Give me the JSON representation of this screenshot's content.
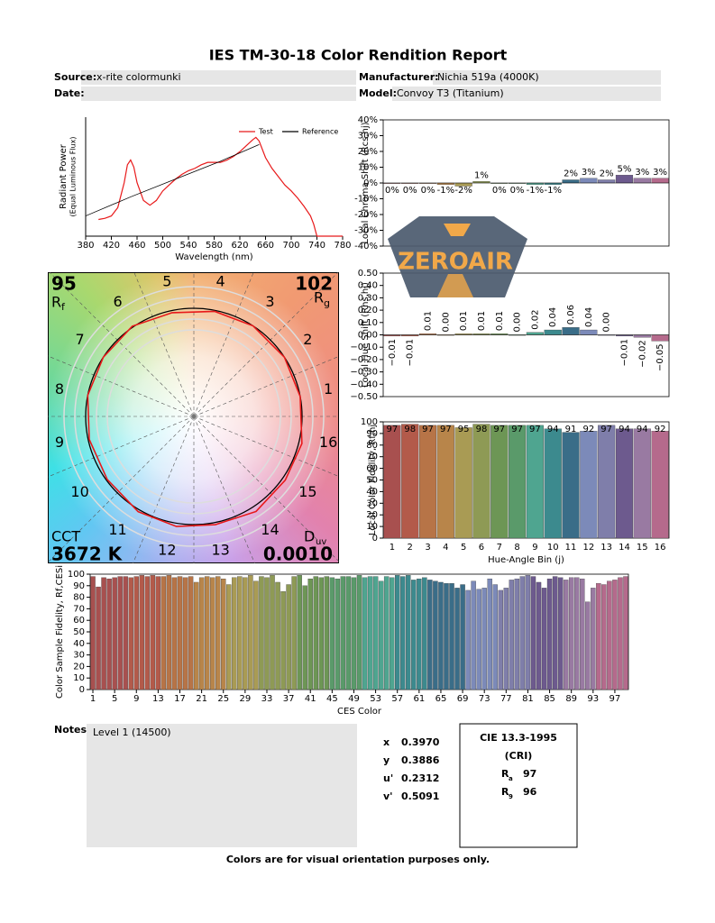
{
  "header": {
    "title": "IES TM-30-18 Color Rendition Report",
    "source_label": "Source:",
    "source": "x-rite colormunki",
    "date_label": "Date:",
    "manufacturer_label": "Manufacturer:",
    "manufacturer": "Nichia 519a (4000K)",
    "model_label": "Model:",
    "model": "Convoy T3 (Titanium)"
  },
  "chart_data": [
    {
      "type": "line",
      "xlabel": "Wavelength (nm)",
      "ylabel": "Radiant Power",
      "ylabel2": "(Equal Luminous Flux)",
      "xlim": [
        380,
        780
      ],
      "xticks": [
        380,
        420,
        460,
        500,
        540,
        580,
        620,
        660,
        700,
        740,
        780
      ],
      "ylim": [
        0,
        1
      ],
      "series": [
        {
          "name": "Test",
          "color": "#e8191a",
          "x": [
            400,
            410,
            420,
            430,
            440,
            445,
            450,
            455,
            460,
            470,
            480,
            490,
            500,
            510,
            520,
            530,
            540,
            550,
            560,
            570,
            580,
            590,
            600,
            610,
            620,
            630,
            640,
            645,
            650,
            660,
            670,
            680,
            690,
            700,
            710,
            720,
            730,
            735,
            740,
            750,
            760,
            780
          ],
          "values": [
            0.14,
            0.15,
            0.17,
            0.24,
            0.45,
            0.6,
            0.64,
            0.58,
            0.45,
            0.3,
            0.26,
            0.3,
            0.38,
            0.43,
            0.48,
            0.52,
            0.55,
            0.57,
            0.6,
            0.62,
            0.62,
            0.62,
            0.64,
            0.67,
            0.71,
            0.76,
            0.81,
            0.83,
            0.8,
            0.66,
            0.57,
            0.5,
            0.43,
            0.38,
            0.32,
            0.25,
            0.17,
            0.1,
            0,
            0,
            0,
            0
          ]
        },
        {
          "name": "Reference",
          "color": "#000000",
          "x": [
            380,
            450,
            520,
            590,
            650
          ],
          "values": [
            0.17,
            0.33,
            0.48,
            0.63,
            0.77
          ]
        }
      ]
    },
    {
      "type": "bar",
      "ylabel": "Local Chroma Shift (Rcs,hj)",
      "ylim": [
        -40,
        40
      ],
      "yticks": [
        {
          "value": -40,
          "label": "-40%"
        },
        {
          "value": -30,
          "label": "-30%"
        },
        {
          "value": -20,
          "label": "-20%"
        },
        {
          "value": -10,
          "label": "-10%"
        },
        {
          "value": 0,
          "label": "0%"
        },
        {
          "value": 10,
          "label": "10%"
        },
        {
          "value": 20,
          "label": "20%"
        },
        {
          "value": 30,
          "label": "30%"
        },
        {
          "value": 40,
          "label": "40%"
        }
      ],
      "values": [
        0,
        0,
        0,
        -1,
        -2,
        1,
        0,
        0,
        -1,
        -1,
        2,
        3,
        2,
        5,
        3,
        3
      ],
      "value_labels": [
        "0%",
        "0%",
        "0%",
        "-1%",
        "-2%",
        "1%",
        "0%",
        "0%",
        "-1%",
        "-1%",
        "2%",
        "3%",
        "2%",
        "5%",
        "3%",
        "3%"
      ],
      "colors": [
        "#a8504f",
        "#b35a4a",
        "#b77447",
        "#b8854a",
        "#a99b54",
        "#8e9a55",
        "#6d9655",
        "#5a9a6a",
        "#4fa590",
        "#3c8a8e",
        "#3a6d88",
        "#7c8ab9",
        "#7f7eaa",
        "#6d5a8e",
        "#997aa2",
        "#b56a8c"
      ]
    },
    {
      "type": "bar",
      "ylabel": "Local Hue Shift (Rhs,hj)",
      "ylim": [
        -0.5,
        0.5
      ],
      "yticks": [
        {
          "value": -0.5,
          "label": "−0.50"
        },
        {
          "value": -0.4,
          "label": "−0.40"
        },
        {
          "value": -0.3,
          "label": "−0.30"
        },
        {
          "value": -0.2,
          "label": "−0.20"
        },
        {
          "value": -0.1,
          "label": "−0.10"
        },
        {
          "value": 0,
          "label": "0.00"
        },
        {
          "value": 0.1,
          "label": "0.10"
        },
        {
          "value": 0.2,
          "label": "0.20"
        },
        {
          "value": 0.3,
          "label": "0.30"
        },
        {
          "value": 0.4,
          "label": "0.40"
        },
        {
          "value": 0.5,
          "label": "0.50"
        }
      ],
      "values": [
        -0.01,
        -0.01,
        0.01,
        0,
        0.01,
        0.01,
        0.01,
        0,
        0.02,
        0.04,
        0.06,
        0.04,
        0,
        -0.01,
        -0.02,
        -0.05
      ],
      "value_labels": [
        "−0.01",
        "−0.01",
        "0.01",
        "0.00",
        "0.01",
        "0.01",
        "0.01",
        "0.00",
        "0.02",
        "0.04",
        "0.06",
        "0.04",
        "0.00",
        "−0.01",
        "−0.02",
        "−0.05"
      ],
      "colors": [
        "#a8504f",
        "#b35a4a",
        "#b77447",
        "#b8854a",
        "#a99b54",
        "#8e9a55",
        "#6d9655",
        "#5a9a6a",
        "#4fa590",
        "#3c8a8e",
        "#3a6d88",
        "#7c8ab9",
        "#7f7eaa",
        "#6d5a8e",
        "#997aa2",
        "#b56a8c"
      ]
    },
    {
      "type": "bar",
      "ylabel": "Local Color Fidelity, Rf,hj",
      "xlabel": "Hue-Angle Bin (j)",
      "ylim": [
        0,
        100
      ],
      "yticks": [
        0,
        10,
        20,
        30,
        40,
        50,
        60,
        70,
        80,
        90,
        100
      ],
      "categories": [
        1,
        2,
        3,
        4,
        5,
        6,
        7,
        8,
        9,
        10,
        11,
        12,
        13,
        14,
        15,
        16
      ],
      "values": [
        97,
        98,
        97,
        97,
        95,
        98,
        97,
        97,
        97,
        94,
        91,
        92,
        97,
        94,
        94,
        92
      ],
      "colors": [
        "#a8504f",
        "#b35a4a",
        "#b77447",
        "#b8854a",
        "#a99b54",
        "#8e9a55",
        "#6d9655",
        "#5a9a6a",
        "#4fa590",
        "#3c8a8e",
        "#3a6d88",
        "#7c8ab9",
        "#7f7eaa",
        "#6d5a8e",
        "#997aa2",
        "#b56a8c"
      ]
    },
    {
      "type": "bar",
      "ylabel": "Color Sample Fidelity, Rf,CESi",
      "xlabel": "CES Color",
      "ylim": [
        0,
        100
      ],
      "yticks": [
        0,
        10,
        20,
        30,
        40,
        50,
        60,
        70,
        80,
        90,
        100
      ],
      "xlim": [
        0.5,
        99.5
      ],
      "xticks": [
        1,
        5,
        9,
        13,
        17,
        21,
        25,
        29,
        33,
        37,
        41,
        45,
        49,
        53,
        57,
        61,
        65,
        69,
        73,
        77,
        81,
        85,
        89,
        93,
        97
      ],
      "x": [
        1,
        2,
        3,
        4,
        5,
        6,
        7,
        8,
        9,
        10,
        11,
        12,
        13,
        14,
        15,
        16,
        17,
        18,
        19,
        20,
        21,
        22,
        23,
        24,
        25,
        26,
        27,
        28,
        29,
        30,
        31,
        32,
        33,
        34,
        35,
        36,
        37,
        38,
        39,
        40,
        41,
        42,
        43,
        44,
        45,
        46,
        47,
        48,
        49,
        50,
        51,
        52,
        53,
        54,
        55,
        56,
        57,
        58,
        59,
        60,
        61,
        62,
        63,
        64,
        65,
        66,
        67,
        68,
        69,
        70,
        71,
        72,
        73,
        74,
        75,
        76,
        77,
        78,
        79,
        80,
        81,
        82,
        83,
        84,
        85,
        86,
        87,
        88,
        89,
        90,
        91,
        92,
        93,
        94,
        95,
        96,
        97,
        98,
        99
      ],
      "values": [
        98,
        89,
        97,
        96,
        97,
        98,
        98,
        97,
        98,
        99,
        98,
        99,
        98,
        98,
        99,
        97,
        98,
        97,
        98,
        93,
        97,
        98,
        97,
        98,
        96,
        91,
        97,
        98,
        97,
        99,
        94,
        98,
        97,
        99,
        93,
        85,
        91,
        98,
        99,
        90,
        96,
        98,
        97,
        98,
        97,
        96,
        98,
        98,
        97,
        99,
        97,
        98,
        98,
        94,
        98,
        97,
        99,
        98,
        99,
        95,
        96,
        97,
        95,
        94,
        93,
        92,
        92,
        88,
        91,
        86,
        94,
        87,
        88,
        96,
        91,
        86,
        88,
        95,
        96,
        98,
        99,
        98,
        93,
        88,
        96,
        98,
        97,
        95,
        97,
        97,
        96,
        76,
        88,
        92,
        91,
        94,
        95,
        97,
        98
      ],
      "colors": [
        "#a8504f",
        "#b35a4a",
        "#b77447",
        "#b8854a",
        "#a99b54",
        "#8e9a55",
        "#6d9655",
        "#5a9a6a",
        "#4fa590",
        "#3c8a8e",
        "#3a6d88",
        "#7c8ab9",
        "#7f7eaa",
        "#6d5a8e",
        "#997aa2",
        "#b56a8c"
      ]
    },
    {
      "type": "hue_wheel",
      "rf": 95,
      "rf_symbol": "R",
      "rf_sub": "f",
      "rg": 102,
      "rg_symbol": "R",
      "rg_sub": "g",
      "cct_label": "CCT",
      "cct": "3672 K",
      "duv_symbol": "D",
      "duv_sub": "uv",
      "duv": "0.0010"
    }
  ],
  "notes": {
    "label": "Notes:",
    "text": "Level 1 (14500)"
  },
  "chromaticity": [
    {
      "label": "x",
      "value": "0.3970"
    },
    {
      "label": "y",
      "value": "0.3886"
    },
    {
      "label": "u'",
      "value": "0.2312"
    },
    {
      "label": "v'",
      "value": "0.5091"
    }
  ],
  "cri": {
    "title": "CIE 13.3-1995",
    "subtitle": "(CRI)",
    "ra_symbol": "R",
    "ra_sub": "a",
    "ra": 97,
    "r9_symbol": "R",
    "r9_sub": "9",
    "r9": 96
  },
  "footer": "Colors are for visual orientation purposes only.",
  "logo": "ZEROAIR"
}
